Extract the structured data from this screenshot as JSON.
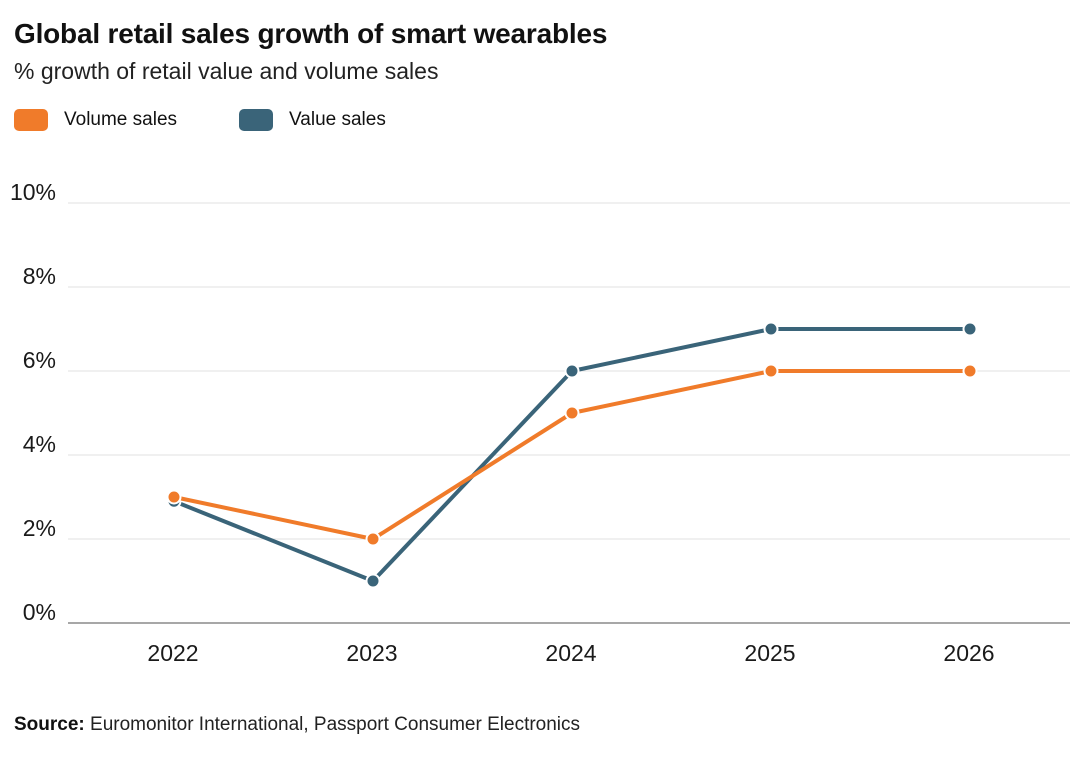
{
  "title": "Global retail sales growth of smart wearables",
  "subtitle": "% growth of retail value and volume sales",
  "colors": {
    "volume": "#f07b2a",
    "value": "#3a6479",
    "grid": "#e6e6e6",
    "axis": "#8a8a8a"
  },
  "legend": [
    {
      "label": "Volume sales",
      "color": "#f07b2a"
    },
    {
      "label": "Value sales",
      "color": "#3a6479"
    }
  ],
  "source": {
    "label": "Source:",
    "text": " Euromonitor International, Passport Consumer Electronics"
  },
  "chart_data": {
    "type": "line",
    "title": "Global retail sales growth of smart wearables",
    "subtitle": "% growth of retail value and volume sales",
    "xlabel": "",
    "ylabel": "",
    "categories": [
      "2022",
      "2023",
      "2024",
      "2025",
      "2026"
    ],
    "series": [
      {
        "name": "Volume sales",
        "values": [
          3,
          2,
          5,
          6,
          6
        ],
        "color": "#f07b2a"
      },
      {
        "name": "Value sales",
        "values": [
          2.9,
          1,
          6,
          7,
          7
        ],
        "color": "#3a6479"
      }
    ],
    "ylim": [
      0,
      10
    ],
    "yticks": [
      0,
      2,
      4,
      6,
      8,
      10
    ],
    "ytick_labels": [
      "0%",
      "2%",
      "4%",
      "6%",
      "8%",
      "10%"
    ],
    "grid": true,
    "legend_position": "top-left"
  }
}
